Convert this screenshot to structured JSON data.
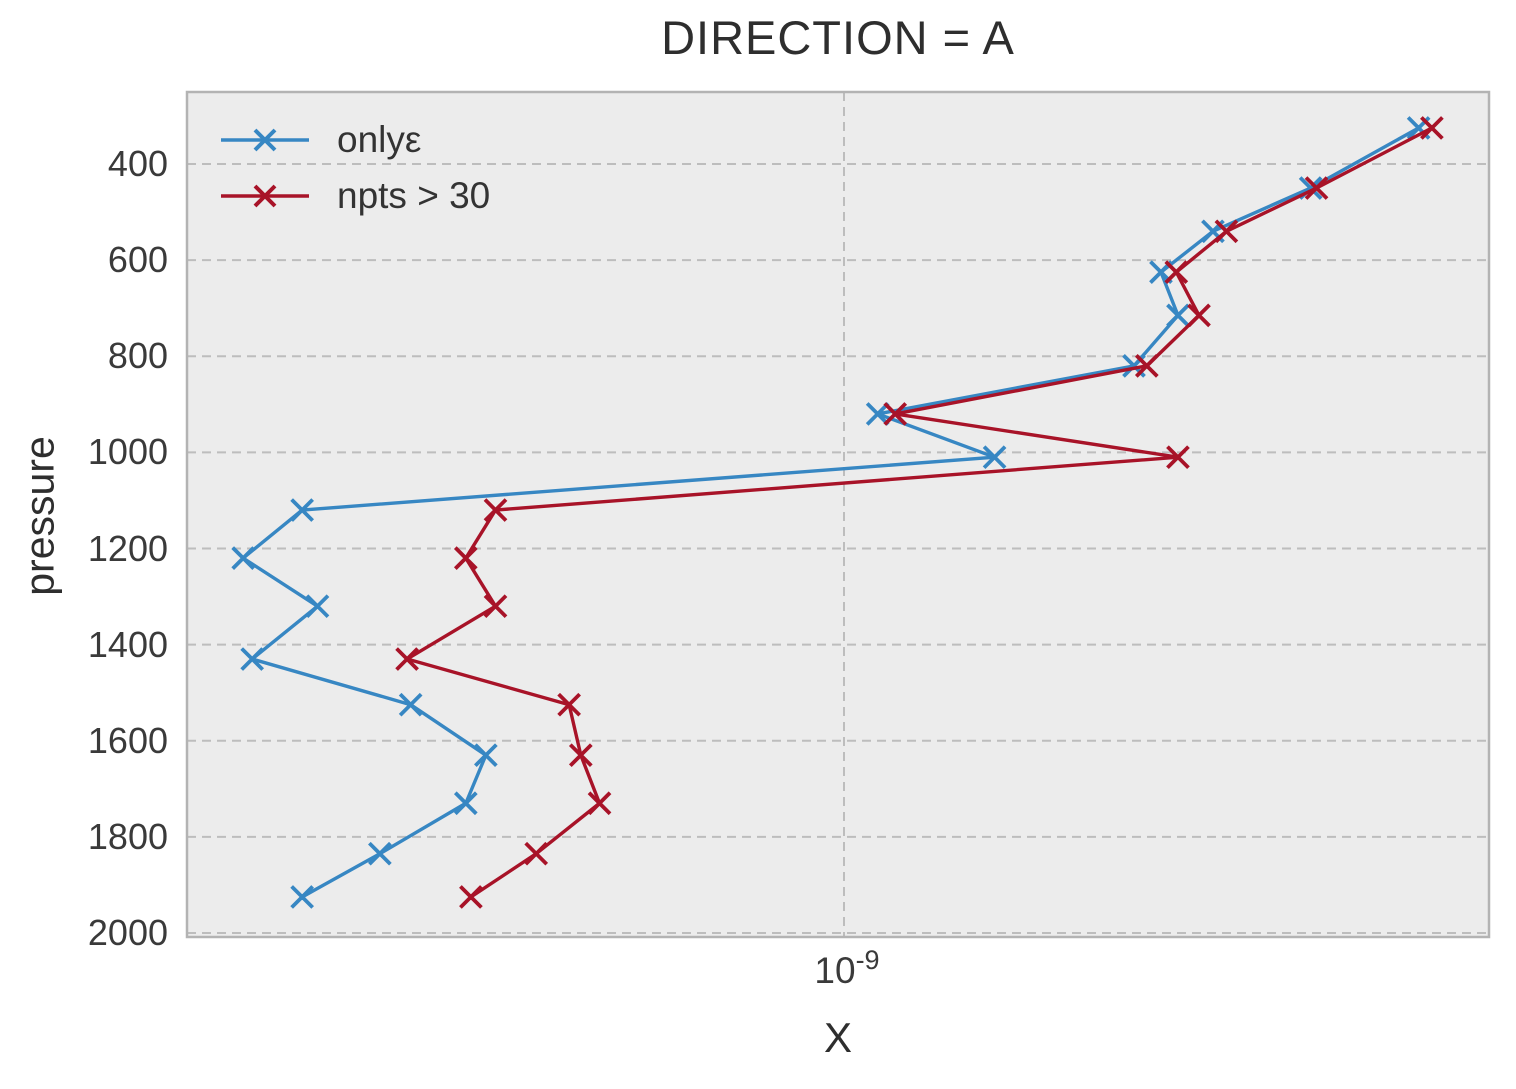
{
  "chart_data": {
    "type": "line",
    "title": "DIRECTION = A",
    "xlabel": "X",
    "ylabel": "pressure",
    "x_scale": "log",
    "y_inverted": true,
    "grid": true,
    "legend_position": "upper left",
    "marker": "x",
    "x_tick": {
      "base": "10",
      "exp": "-9",
      "value": 1e-09
    },
    "xlim": [
      1.9e-10,
      5.2e-09
    ],
    "ylim": [
      2005,
      250
    ],
    "y_ticks": [
      400,
      600,
      800,
      1000,
      1200,
      1400,
      1600,
      1800,
      2000
    ],
    "pressure_levels": [
      325,
      450,
      540,
      625,
      715,
      820,
      920,
      1010,
      1120,
      1220,
      1320,
      1430,
      1525,
      1630,
      1730,
      1835,
      1925
    ],
    "series": [
      {
        "name": "onlyε",
        "color": "#3787c3",
        "x": [
          4.35e-09,
          3.3e-09,
          2.57e-09,
          2.25e-09,
          2.35e-09,
          2.1e-09,
          1.09e-09,
          1.47e-09,
          2.5e-10,
          2.15e-10,
          2.6e-10,
          2.2e-10,
          3.3e-10,
          4e-10,
          3.8e-10,
          3.05e-10,
          2.5e-10
        ]
      },
      {
        "name": "npts > 30",
        "color": "#a81328",
        "x": [
          4.5e-09,
          3.35e-09,
          2.66e-09,
          2.34e-09,
          2.48e-09,
          2.17e-09,
          1.14e-09,
          2.35e-09,
          4.1e-10,
          3.8e-10,
          4.1e-10,
          3.27e-10,
          4.95e-10,
          5.1e-10,
          5.35e-10,
          4.55e-10,
          3.85e-10
        ]
      }
    ],
    "colors": {
      "axes_bg": "#ececec",
      "grid": "#bdbdbd",
      "spine": "#b3b3b3",
      "title_text": "#2e2e2e",
      "tick_text": "#3a3a3a"
    }
  }
}
